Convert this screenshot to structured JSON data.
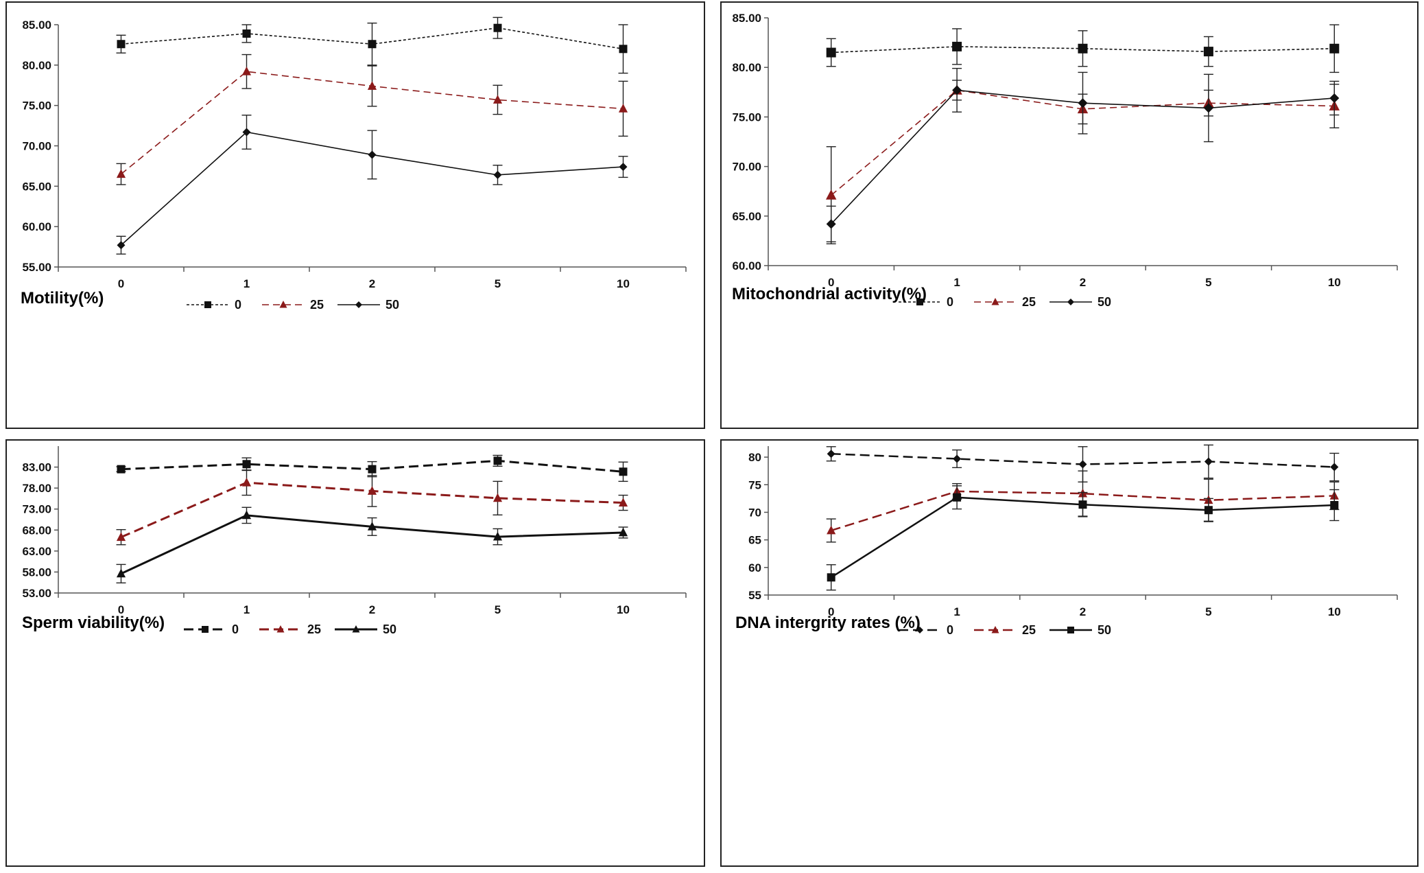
{
  "chart_data": [
    {
      "type": "line",
      "xlabel": "Motility(%)",
      "categories": [
        "0",
        "1",
        "2",
        "5",
        "10"
      ],
      "ylim": [
        55,
        85
      ],
      "yticks": [
        "55.00",
        "60.00",
        "65.00",
        "70.00",
        "75.00",
        "80.00",
        "85.00"
      ],
      "series": [
        {
          "name": "0",
          "values": [
            82.6,
            83.9,
            82.6,
            84.6,
            82.0
          ],
          "errors": [
            1.1,
            1.1,
            2.6,
            1.3,
            3.0
          ],
          "color": "#111111",
          "dash": "dotted",
          "marker": "square"
        },
        {
          "name": "25",
          "values": [
            66.5,
            79.2,
            77.4,
            75.7,
            74.6
          ],
          "errors": [
            1.3,
            2.1,
            2.5,
            1.8,
            3.4
          ],
          "color": "#8b1a1a",
          "dash": "dashed",
          "marker": "triangle"
        },
        {
          "name": "50",
          "values": [
            57.7,
            71.7,
            68.9,
            66.4,
            67.4
          ],
          "errors": [
            1.1,
            2.1,
            3.0,
            1.2,
            1.3
          ],
          "color": "#111111",
          "dash": "solid",
          "marker": "diamond"
        }
      ]
    },
    {
      "type": "line",
      "xlabel": "Mitochondrial activity(%)",
      "categories": [
        "0",
        "1",
        "2",
        "5",
        "10"
      ],
      "ylim": [
        60,
        85
      ],
      "yticks": [
        "60.00",
        "65.00",
        "70.00",
        "75.00",
        "80.00",
        "85.00"
      ],
      "series": [
        {
          "name": "0",
          "values": [
            81.5,
            82.1,
            81.9,
            81.6,
            81.9
          ],
          "errors": [
            1.4,
            1.8,
            1.8,
            1.5,
            2.4
          ],
          "color": "#111111",
          "dash": "dotted",
          "marker": "square"
        },
        {
          "name": "25",
          "values": [
            67.1,
            77.7,
            75.8,
            76.4,
            76.1
          ],
          "errors": [
            4.9,
            1.0,
            1.5,
            1.3,
            2.2
          ],
          "color": "#8b1a1a",
          "dash": "dashed",
          "marker": "triangle"
        },
        {
          "name": "50",
          "values": [
            64.2,
            77.7,
            76.4,
            75.9,
            76.9
          ],
          "errors": [
            1.8,
            2.2,
            3.1,
            3.4,
            1.7
          ],
          "color": "#111111",
          "dash": "solid",
          "marker": "diamond"
        }
      ]
    },
    {
      "type": "line",
      "xlabel": "Sperm viability(%)",
      "categories": [
        "0",
        "1",
        "2",
        "5",
        "10"
      ],
      "ylim": [
        53,
        88
      ],
      "yticks": [
        "53.00",
        "58.00",
        "63.00",
        "68.00",
        "73.00",
        "78.00",
        "83.00"
      ],
      "series": [
        {
          "name": "0",
          "values": [
            82.5,
            83.7,
            82.5,
            84.5,
            81.9
          ],
          "errors": [
            0.6,
            1.5,
            1.8,
            1.3,
            2.3
          ],
          "color": "#111111",
          "dash": "dashed",
          "marker": "square"
        },
        {
          "name": "25",
          "values": [
            66.3,
            79.3,
            77.3,
            75.6,
            74.5
          ],
          "errors": [
            1.8,
            3.0,
            3.7,
            4.0,
            1.8
          ],
          "color": "#8b1a1a",
          "dash": "dashed",
          "marker": "triangle"
        },
        {
          "name": "50",
          "values": [
            57.6,
            71.5,
            68.8,
            66.4,
            67.4
          ],
          "errors": [
            2.2,
            1.9,
            2.1,
            1.9,
            1.3
          ],
          "color": "#111111",
          "dash": "solid",
          "marker": "triangle"
        }
      ]
    },
    {
      "type": "line",
      "xlabel": "DNA intergrity rates (%)",
      "categories": [
        "0",
        "1",
        "2",
        "5",
        "10"
      ],
      "ylim": [
        55,
        82
      ],
      "yticks": [
        "55",
        "60",
        "65",
        "70",
        "75",
        "80"
      ],
      "series": [
        {
          "name": "0",
          "values": [
            80.6,
            79.7,
            78.7,
            79.2,
            78.2
          ],
          "errors": [
            1.3,
            1.6,
            3.2,
            3.0,
            2.5
          ],
          "color": "#111111",
          "dash": "dashed",
          "marker": "diamond"
        },
        {
          "name": "25",
          "values": [
            66.7,
            73.8,
            73.4,
            72.2,
            73.0
          ],
          "errors": [
            2.1,
            1.4,
            4.1,
            3.8,
            2.5
          ],
          "color": "#8b1a1a",
          "dash": "dashed",
          "marker": "triangle"
        },
        {
          "name": "50",
          "values": [
            58.2,
            72.7,
            71.4,
            70.4,
            71.3
          ],
          "errors": [
            2.3,
            2.1,
            2.2,
            2.1,
            2.8
          ],
          "color": "#111111",
          "dash": "solid",
          "marker": "square"
        }
      ]
    }
  ]
}
